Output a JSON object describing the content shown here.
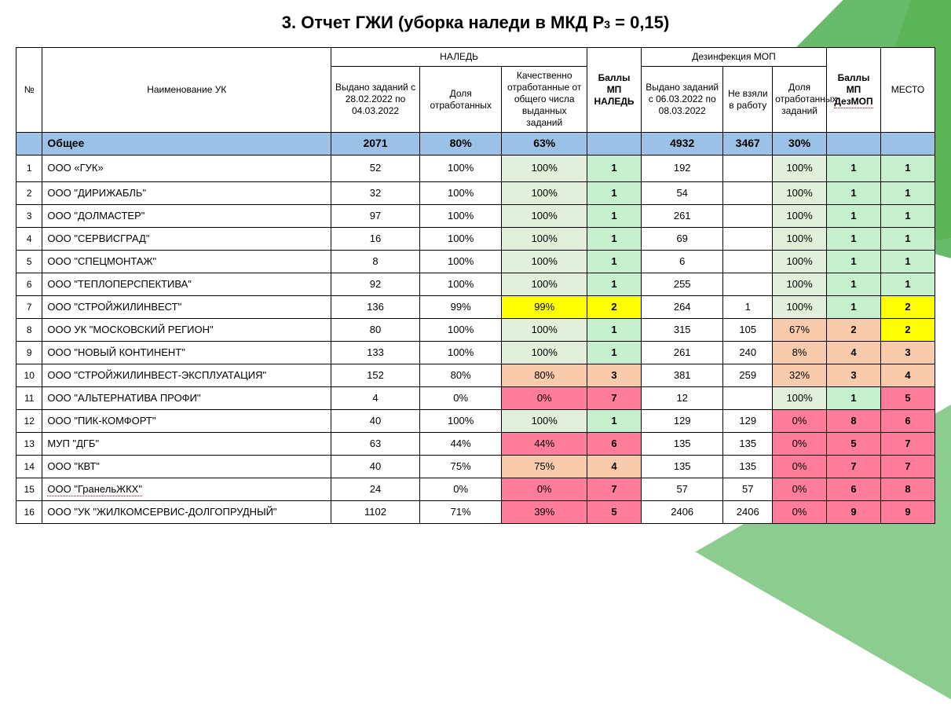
{
  "page": {
    "title_prefix": "3. Отчет ГЖИ (уборка наледи в МКД Р",
    "title_sub": "3",
    "title_suffix": " = 0,15)",
    "background_color": "#ffffff"
  },
  "colors": {
    "totals_row": "#9bc2e6",
    "green_light": "#e2efda",
    "green_bold": "#c6efce",
    "peach": "#f8cbad",
    "pink": "#ff7c9b",
    "yellow": "#ffff00",
    "border": "#000000",
    "deco_green1": "#4caf50",
    "deco_green2": "#8bc34a",
    "deco_green3": "#66bb6a"
  },
  "header": {
    "num": "№",
    "name": "Наименование УК",
    "ice_group": "НАЛЕДЬ",
    "issued": "Выдано заданий с 28.02.2022 по 04.03.2022",
    "share": "Доля отработанных",
    "quality": "Качественно отработанные от общего числа выданных заданий",
    "points_ice": "Баллы МП НАЛЕДЬ",
    "dez_group": "Дезинфекция МОП",
    "dez_issued": "Выдано заданий с 06.03.2022 по 08.03.2022",
    "dez_not": "Не взяли в работу",
    "dez_share": "Доля отработанных заданий",
    "points_dez_l1": "Баллы",
    "points_dez_l2": "МП",
    "points_dez_l3": "ДезМОП",
    "place": "МЕСТО"
  },
  "totals": {
    "label": "Общее",
    "issued": "2071",
    "share": "80%",
    "quality": "63%",
    "points_ice": "",
    "dez_issued": "4932",
    "dez_not": "3467",
    "dez_share": "30%",
    "points_dez": "",
    "place": ""
  },
  "rows": [
    {
      "n": "1",
      "name": "ООО «ГУК»",
      "issued": "52",
      "share": "100%",
      "quality": "100%",
      "q_bg": "green_light",
      "pi": "1",
      "pi_bg": "green_bold",
      "di": "192",
      "dn": "",
      "ds": "100%",
      "ds_bg": "green_light",
      "pd": "1",
      "pd_bg": "green_bold",
      "place": "1",
      "pl_bg": "green_bold"
    },
    {
      "n": "2",
      "name": "ООО \"ДИРИЖАБЛЬ\"",
      "issued": "32",
      "share": "100%",
      "quality": "100%",
      "q_bg": "green_light",
      "pi": "1",
      "pi_bg": "green_bold",
      "di": "54",
      "dn": "",
      "ds": "100%",
      "ds_bg": "green_light",
      "pd": "1",
      "pd_bg": "green_bold",
      "place": "1",
      "pl_bg": "green_bold"
    },
    {
      "n": "3",
      "name": "ООО \"ДОЛМАСТЕР\"",
      "issued": "97",
      "share": "100%",
      "quality": "100%",
      "q_bg": "green_light",
      "pi": "1",
      "pi_bg": "green_bold",
      "di": "261",
      "dn": "",
      "ds": "100%",
      "ds_bg": "green_light",
      "pd": "1",
      "pd_bg": "green_bold",
      "place": "1",
      "pl_bg": "green_bold"
    },
    {
      "n": "4",
      "name": "ООО \"СЕРВИСГРАД\"",
      "issued": "16",
      "share": "100%",
      "quality": "100%",
      "q_bg": "green_light",
      "pi": "1",
      "pi_bg": "green_bold",
      "di": "69",
      "dn": "",
      "ds": "100%",
      "ds_bg": "green_light",
      "pd": "1",
      "pd_bg": "green_bold",
      "place": "1",
      "pl_bg": "green_bold"
    },
    {
      "n": "5",
      "name": "ООО \"СПЕЦМОНТАЖ\"",
      "issued": "8",
      "share": "100%",
      "quality": "100%",
      "q_bg": "green_light",
      "pi": "1",
      "pi_bg": "green_bold",
      "di": "6",
      "dn": "",
      "ds": "100%",
      "ds_bg": "green_light",
      "pd": "1",
      "pd_bg": "green_bold",
      "place": "1",
      "pl_bg": "green_bold"
    },
    {
      "n": "6",
      "name": "ООО \"ТЕПЛОПЕРСПЕКТИВА\"",
      "issued": "92",
      "share": "100%",
      "quality": "100%",
      "q_bg": "green_light",
      "pi": "1",
      "pi_bg": "green_bold",
      "di": "255",
      "dn": "",
      "ds": "100%",
      "ds_bg": "green_light",
      "pd": "1",
      "pd_bg": "green_bold",
      "place": "1",
      "pl_bg": "green_bold"
    },
    {
      "n": "7",
      "name": "ООО \"СТРОЙЖИЛИНВЕСТ\"",
      "issued": "136",
      "share": "99%",
      "quality": "99%",
      "q_bg": "yellow",
      "pi": "2",
      "pi_bg": "yellow",
      "di": "264",
      "dn": "1",
      "ds": "100%",
      "ds_bg": "green_light",
      "pd": "1",
      "pd_bg": "green_bold",
      "place": "2",
      "pl_bg": "yellow"
    },
    {
      "n": "8",
      "name": "ООО УК \"МОСКОВСКИЙ РЕГИОН\"",
      "issued": "80",
      "share": "100%",
      "quality": "100%",
      "q_bg": "green_light",
      "pi": "1",
      "pi_bg": "green_bold",
      "di": "315",
      "dn": "105",
      "ds": "67%",
      "ds_bg": "peach",
      "pd": "2",
      "pd_bg": "peach",
      "place": "2",
      "pl_bg": "yellow"
    },
    {
      "n": "9",
      "name": "ООО \"НОВЫЙ КОНТИНЕНТ\"",
      "issued": "133",
      "share": "100%",
      "quality": "100%",
      "q_bg": "green_light",
      "pi": "1",
      "pi_bg": "green_bold",
      "di": "261",
      "dn": "240",
      "ds": "8%",
      "ds_bg": "peach",
      "pd": "4",
      "pd_bg": "peach",
      "place": "3",
      "pl_bg": "peach"
    },
    {
      "n": "10",
      "name": "ООО \"СТРОЙЖИЛИНВЕСТ-ЭКСПЛУАТАЦИЯ\"",
      "issued": "152",
      "share": "80%",
      "quality": "80%",
      "q_bg": "peach",
      "pi": "3",
      "pi_bg": "peach",
      "di": "381",
      "dn": "259",
      "ds": "32%",
      "ds_bg": "peach",
      "pd": "3",
      "pd_bg": "peach",
      "place": "4",
      "pl_bg": "peach"
    },
    {
      "n": "11",
      "name": "ООО \"АЛЬТЕРНАТИВА ПРОФИ\"",
      "issued": "4",
      "share": "0%",
      "quality": "0%",
      "q_bg": "pink",
      "pi": "7",
      "pi_bg": "pink",
      "di": "12",
      "dn": "",
      "ds": "100%",
      "ds_bg": "green_light",
      "pd": "1",
      "pd_bg": "green_bold",
      "place": "5",
      "pl_bg": "pink"
    },
    {
      "n": "12",
      "name": "ООО \"ПИК-КОМФОРТ\"",
      "issued": "40",
      "share": "100%",
      "quality": "100%",
      "q_bg": "green_light",
      "pi": "1",
      "pi_bg": "green_bold",
      "di": "129",
      "dn": "129",
      "ds": "0%",
      "ds_bg": "pink",
      "pd": "8",
      "pd_bg": "pink",
      "place": "6",
      "pl_bg": "pink"
    },
    {
      "n": "13",
      "name": "МУП \"ДГБ\"",
      "issued": "63",
      "share": "44%",
      "quality": "44%",
      "q_bg": "pink",
      "pi": "6",
      "pi_bg": "pink",
      "di": "135",
      "dn": "135",
      "ds": "0%",
      "ds_bg": "pink",
      "pd": "5",
      "pd_bg": "pink",
      "place": "7",
      "pl_bg": "pink"
    },
    {
      "n": "14",
      "name": "ООО \"КВТ\"",
      "issued": "40",
      "share": "75%",
      "quality": "75%",
      "q_bg": "peach",
      "pi": "4",
      "pi_bg": "peach",
      "di": "135",
      "dn": "135",
      "ds": "0%",
      "ds_bg": "pink",
      "pd": "7",
      "pd_bg": "pink",
      "place": "7",
      "pl_bg": "pink"
    },
    {
      "n": "15",
      "name": "ООО \"ГранельЖКХ\"",
      "name_dotted": true,
      "issued": "24",
      "share": "0%",
      "quality": "0%",
      "q_bg": "pink",
      "pi": "7",
      "pi_bg": "pink",
      "di": "57",
      "dn": "57",
      "ds": "0%",
      "ds_bg": "pink",
      "pd": "6",
      "pd_bg": "pink",
      "place": "8",
      "pl_bg": "pink"
    },
    {
      "n": "16",
      "name": "ООО \"УК \"ЖИЛКОМСЕРВИС-ДОЛГОПРУДНЫЙ\"",
      "issued": "1102",
      "share": "71%",
      "quality": "39%",
      "q_bg": "pink",
      "pi": "5",
      "pi_bg": "pink",
      "di": "2406",
      "dn": "2406",
      "ds": "0%",
      "ds_bg": "pink",
      "pd": "9",
      "pd_bg": "pink",
      "place": "9",
      "pl_bg": "pink"
    }
  ]
}
